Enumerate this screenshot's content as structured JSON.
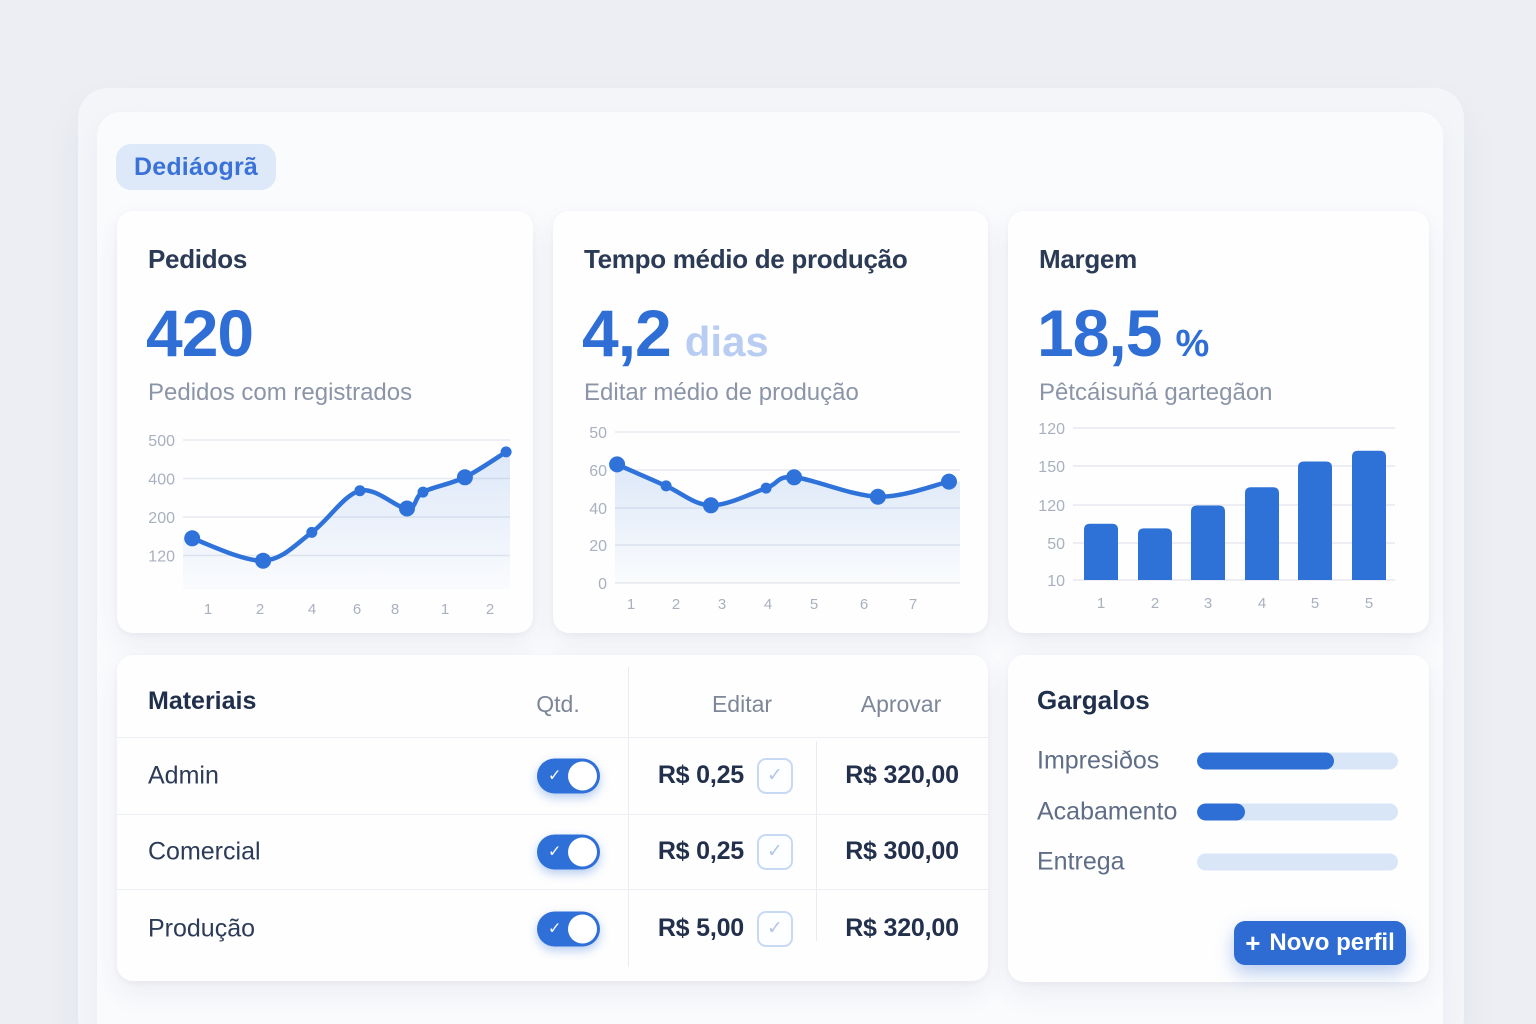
{
  "colors": {
    "accent": "#2e6fd6",
    "accent_light": "#b9cdf2",
    "track": "#d9e6f8",
    "text_dark": "#2b3a55",
    "text_gray": "#8b95a7",
    "badge_bg": "#dde9f9"
  },
  "icons": {
    "check": "✓",
    "plus": "+"
  },
  "badge": {
    "label": "Dediáogrã"
  },
  "cards": {
    "pedidos": {
      "title": "Pedidos",
      "value": "420",
      "subtitle": "Pedidos com registrados"
    },
    "tempo": {
      "title": "Tempo médio de produção",
      "value": "4,2",
      "unit": "dias",
      "subtitle": "Editar médio de produção"
    },
    "margem": {
      "title": "Margem",
      "value": "18,5",
      "unit": "%",
      "subtitle": "Pêtcáisuñá gartegãon"
    }
  },
  "chart_data": [
    {
      "type": "line",
      "card": "pedidos",
      "title": "Pedidos",
      "y_tick_labels": [
        "500",
        "400",
        "200",
        "120"
      ],
      "x_tick_labels": [
        "1",
        "2",
        "4",
        "6",
        "8",
        "1",
        "2"
      ],
      "x_pct": [
        2.8,
        24.5,
        39.4,
        54.1,
        68.5,
        73.4,
        86.2,
        98.8
      ],
      "values": [
        170,
        95,
        190,
        330,
        270,
        325,
        375,
        460
      ],
      "ylim": [
        0,
        500
      ],
      "marker_big": [
        0,
        1,
        4,
        6
      ],
      "grid": true,
      "legend": "none",
      "area_fill": true
    },
    {
      "type": "line",
      "card": "tempo",
      "title": "Tempo médio de produção",
      "y_tick_labels": [
        "50",
        "60",
        "40",
        "20",
        "0"
      ],
      "x_tick_labels": [
        "1",
        "2",
        "3",
        "4",
        "5",
        "6",
        "7"
      ],
      "x_pct": [
        0.6,
        14.8,
        27.8,
        43.8,
        51.9,
        76.2,
        96.8
      ],
      "values": [
        55,
        45,
        36,
        44,
        49,
        40,
        47
      ],
      "ylim": [
        0,
        70
      ],
      "marker_big": [
        0,
        2,
        4,
        5,
        6
      ],
      "grid": true,
      "legend": "none",
      "area_fill": true
    },
    {
      "type": "bar",
      "card": "margem",
      "title": "Margem",
      "y_tick_labels": [
        "120",
        "150",
        "120",
        "50",
        "10"
      ],
      "x_tick_labels": [
        "1",
        "2",
        "3",
        "4",
        "5",
        "5"
      ],
      "values": [
        37,
        34,
        49,
        61,
        78,
        85
      ],
      "ylim": [
        0,
        100
      ],
      "grid": true,
      "legend": "none"
    }
  ],
  "table": {
    "title": "Materiais",
    "columns": {
      "qtd": "Qtd.",
      "editar": "Editar",
      "aprovar": "Aprovar"
    },
    "rows": [
      {
        "name": "Admin",
        "toggle": true,
        "editar": "R$ 0,25",
        "approved_check": true,
        "aprovar": "R$ 320,00"
      },
      {
        "name": "Comercial",
        "toggle": true,
        "editar": "R$ 0,25",
        "approved_check": true,
        "aprovar": "R$ 300,00"
      },
      {
        "name": "Produção",
        "toggle": true,
        "editar": "R$ 5,00",
        "approved_check": true,
        "aprovar": "R$ 320,00"
      }
    ]
  },
  "gargalos": {
    "title": "Gargalos",
    "items": [
      {
        "label": "Impresiðos",
        "progress": 68
      },
      {
        "label": "Acabamento",
        "progress": 24
      },
      {
        "label": "Entrega",
        "progress": 0
      }
    ],
    "button_label": "Novo perfil"
  }
}
